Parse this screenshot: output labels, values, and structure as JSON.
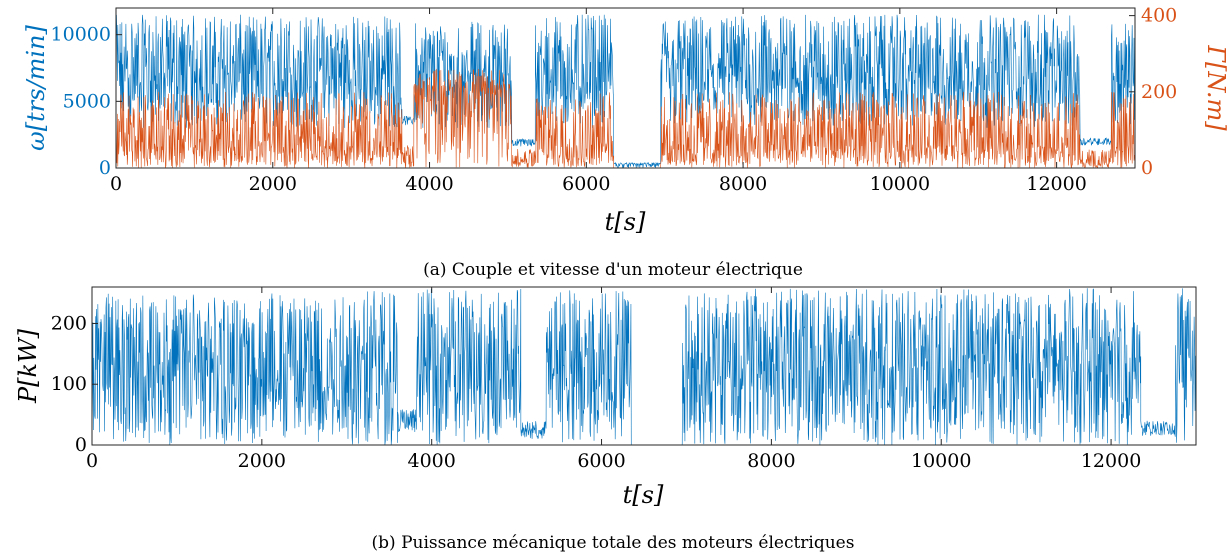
{
  "chart_data": [
    {
      "type": "line",
      "caption": "(a) Couple et vitesse d'un moteur électrique",
      "xlabel": "t[s]",
      "xlim": [
        0,
        13000
      ],
      "xticks": [
        0,
        2000,
        4000,
        6000,
        8000,
        10000,
        12000
      ],
      "yaxes": {
        "left": {
          "label": "ω[trs/min]",
          "lim": [
            0,
            12000
          ],
          "ticks": [
            0,
            5000,
            10000
          ],
          "color": "#0072BD"
        },
        "right": {
          "label": "Γ[N.m]",
          "lim": [
            0,
            420
          ],
          "ticks": [
            0,
            200,
            400
          ],
          "color": "#D95319"
        }
      },
      "grid": false,
      "series": [
        {
          "axis": "left",
          "color": "#0072BD",
          "segments": [
            {
              "x": [
                0,
                2000
              ],
              "low": 3000,
              "base": 7000,
              "high": 11500
            },
            {
              "x": [
                2000,
                3650
              ],
              "low": 3000,
              "base": 7000,
              "high": 11500
            },
            {
              "x": [
                3650,
                3800
              ],
              "low": 3200,
              "base": 3600,
              "high": 3900
            },
            {
              "x": [
                3800,
                5050
              ],
              "low": 3000,
              "base": 7000,
              "high": 11000
            },
            {
              "x": [
                5050,
                5350
              ],
              "low": 1600,
              "base": 1900,
              "high": 2200
            },
            {
              "x": [
                5350,
                6350
              ],
              "low": 3000,
              "base": 7000,
              "high": 11500
            },
            {
              "x": [
                6350,
                6950
              ],
              "low": 0,
              "base": 300,
              "high": 400
            },
            {
              "x": [
                6950,
                12300
              ],
              "low": 3000,
              "base": 7000,
              "high": 11500
            },
            {
              "x": [
                12300,
                12700
              ],
              "low": 1700,
              "base": 2000,
              "high": 2300
            },
            {
              "x": [
                12700,
                13000
              ],
              "low": 3000,
              "base": 7000,
              "high": 11000
            }
          ]
        },
        {
          "axis": "right",
          "color": "#D95319",
          "segments": [
            {
              "x": [
                0,
                3650
              ],
              "low": 0,
              "base": 60,
              "high": 200
            },
            {
              "x": [
                3650,
                3800
              ],
              "low": 0,
              "base": 20,
              "high": 60
            },
            {
              "x": [
                3800,
                5050
              ],
              "low": 0,
              "base": 200,
              "high": 260
            },
            {
              "x": [
                5050,
                5350
              ],
              "low": 0,
              "base": 15,
              "high": 50
            },
            {
              "x": [
                5350,
                6350
              ],
              "low": 0,
              "base": 60,
              "high": 200
            },
            {
              "x": [
                6350,
                6950
              ],
              "low": 0,
              "base": 0,
              "high": 0
            },
            {
              "x": [
                6950,
                12300
              ],
              "low": 0,
              "base": 60,
              "high": 200
            },
            {
              "x": [
                12300,
                12700
              ],
              "low": 0,
              "base": 15,
              "high": 50
            },
            {
              "x": [
                12700,
                13000
              ],
              "low": 0,
              "base": 60,
              "high": 200
            }
          ]
        }
      ]
    },
    {
      "type": "line",
      "caption": "(b) Puissance mécanique totale des moteurs électriques",
      "xlabel": "t[s]",
      "ylabel": "P[kW]",
      "xlim": [
        0,
        13000
      ],
      "ylim": [
        0,
        260
      ],
      "xticks": [
        0,
        2000,
        4000,
        6000,
        8000,
        10000,
        12000
      ],
      "yticks": [
        0,
        100,
        200
      ],
      "grid": false,
      "series": [
        {
          "color": "#0072BD",
          "segments": [
            {
              "x": [
                0,
                2050
              ],
              "low": 0,
              "base": 130,
              "high": 250
            },
            {
              "x": [
                2050,
                3600
              ],
              "low": 0,
              "base": 130,
              "high": 258
            },
            {
              "x": [
                3600,
                3820
              ],
              "low": 20,
              "base": 40,
              "high": 60
            },
            {
              "x": [
                3820,
                5050
              ],
              "low": 0,
              "base": 130,
              "high": 258
            },
            {
              "x": [
                5050,
                5350
              ],
              "low": 10,
              "base": 25,
              "high": 40
            },
            {
              "x": [
                5350,
                6350
              ],
              "low": 0,
              "base": 130,
              "high": 258
            },
            {
              "x": [
                6350,
                6950
              ],
              "low": 0,
              "base": 0,
              "high": 0
            },
            {
              "x": [
                6950,
                12350
              ],
              "low": 0,
              "base": 130,
              "high": 258
            },
            {
              "x": [
                12350,
                12750
              ],
              "low": 15,
              "base": 25,
              "high": 40
            },
            {
              "x": [
                12750,
                13000
              ],
              "low": 0,
              "base": 130,
              "high": 258
            }
          ]
        }
      ]
    }
  ]
}
